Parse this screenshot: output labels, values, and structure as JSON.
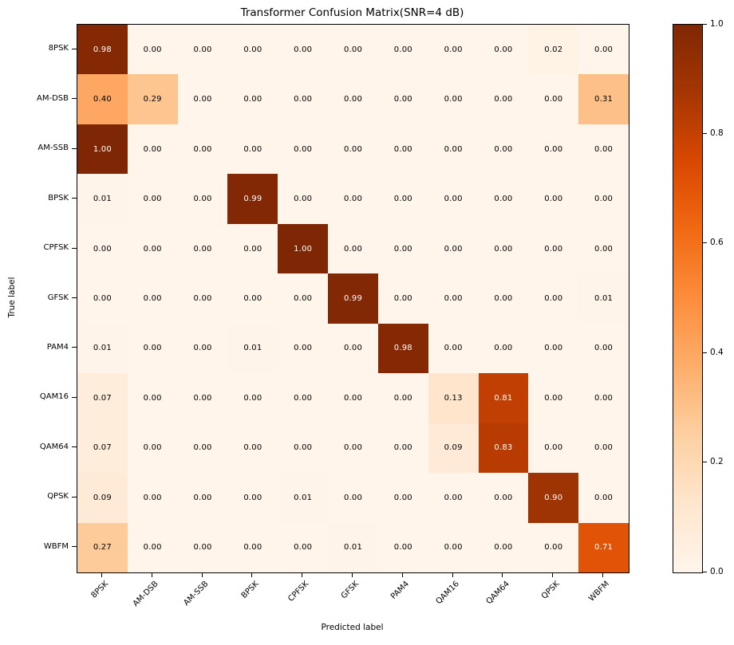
{
  "chart_data": {
    "type": "heatmap",
    "title": "Transformer Confusion Matrix(SNR=4 dB)",
    "xlabel": "Predicted label",
    "ylabel": "True label",
    "categories": [
      "8PSK",
      "AM-DSB",
      "AM-SSB",
      "BPSK",
      "CPFSK",
      "GFSK",
      "PAM4",
      "QAM16",
      "QAM64",
      "QPSK",
      "WBFM"
    ],
    "matrix": [
      [
        0.98,
        0.0,
        0.0,
        0.0,
        0.0,
        0.0,
        0.0,
        0.0,
        0.0,
        0.02,
        0.0
      ],
      [
        0.4,
        0.29,
        0.0,
        0.0,
        0.0,
        0.0,
        0.0,
        0.0,
        0.0,
        0.0,
        0.31
      ],
      [
        1.0,
        0.0,
        0.0,
        0.0,
        0.0,
        0.0,
        0.0,
        0.0,
        0.0,
        0.0,
        0.0
      ],
      [
        0.01,
        0.0,
        0.0,
        0.99,
        0.0,
        0.0,
        0.0,
        0.0,
        0.0,
        0.0,
        0.0
      ],
      [
        0.0,
        0.0,
        0.0,
        0.0,
        1.0,
        0.0,
        0.0,
        0.0,
        0.0,
        0.0,
        0.0
      ],
      [
        0.0,
        0.0,
        0.0,
        0.0,
        0.0,
        0.99,
        0.0,
        0.0,
        0.0,
        0.0,
        0.01
      ],
      [
        0.01,
        0.0,
        0.0,
        0.01,
        0.0,
        0.0,
        0.98,
        0.0,
        0.0,
        0.0,
        0.0
      ],
      [
        0.07,
        0.0,
        0.0,
        0.0,
        0.0,
        0.0,
        0.0,
        0.13,
        0.81,
        0.0,
        0.0
      ],
      [
        0.07,
        0.0,
        0.0,
        0.0,
        0.0,
        0.0,
        0.0,
        0.09,
        0.83,
        0.0,
        0.0
      ],
      [
        0.09,
        0.0,
        0.0,
        0.0,
        0.01,
        0.0,
        0.0,
        0.0,
        0.0,
        0.9,
        0.0
      ],
      [
        0.27,
        0.0,
        0.0,
        0.0,
        0.0,
        0.01,
        0.0,
        0.0,
        0.0,
        0.0,
        0.71
      ]
    ],
    "value_decimals": 2,
    "colormap": {
      "name": "Oranges",
      "stops": [
        {
          "pos": 0.0,
          "color": "#fff5eb"
        },
        {
          "pos": 0.125,
          "color": "#fee6ce"
        },
        {
          "pos": 0.25,
          "color": "#fdd0a2"
        },
        {
          "pos": 0.375,
          "color": "#fdae6b"
        },
        {
          "pos": 0.5,
          "color": "#fd8d3c"
        },
        {
          "pos": 0.625,
          "color": "#f16913"
        },
        {
          "pos": 0.75,
          "color": "#d94801"
        },
        {
          "pos": 0.875,
          "color": "#a63603"
        },
        {
          "pos": 1.0,
          "color": "#7f2704"
        }
      ]
    },
    "cell_text_colors": {
      "light_cell": "#000000",
      "dark_cell": "#ffffff",
      "threshold": 0.5
    },
    "colorbar": {
      "min": 0.0,
      "max": 1.0,
      "ticks": [
        "1.0",
        "0.8",
        "0.6",
        "0.4",
        "0.2",
        "0.0"
      ]
    },
    "grid": false,
    "legend": "colorbar-right"
  }
}
